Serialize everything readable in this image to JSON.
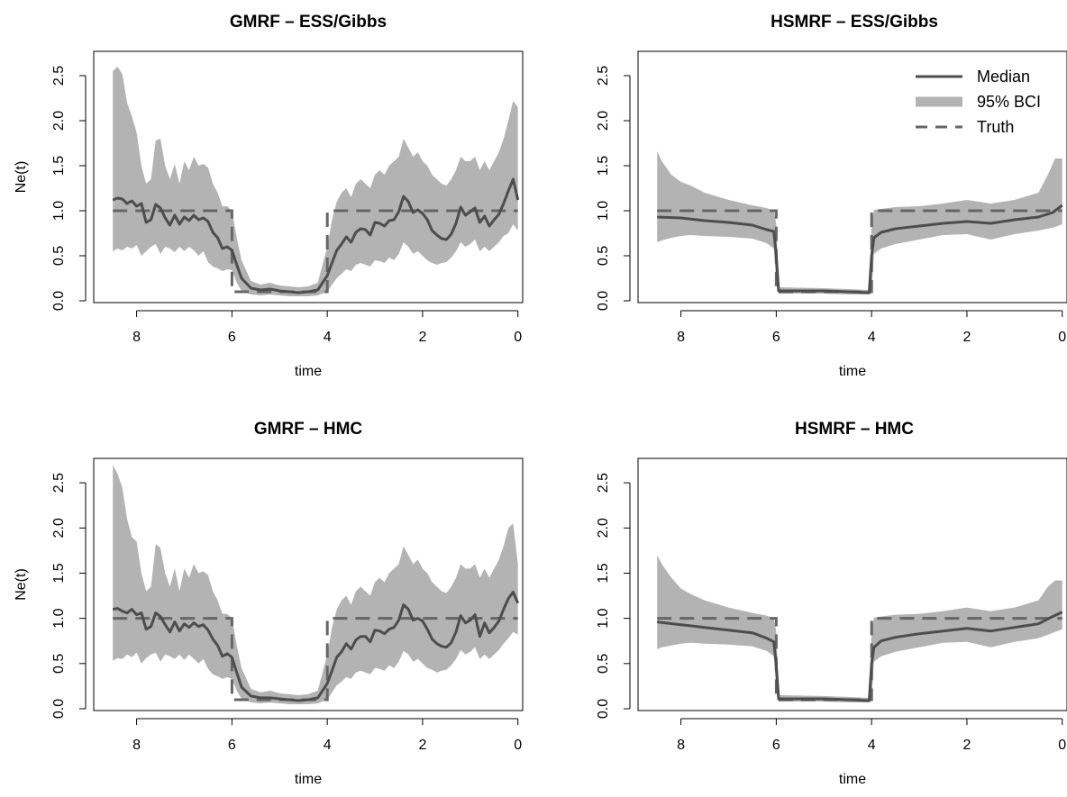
{
  "colors": {
    "median": "#4d4d4d",
    "band": "#b3b3b3",
    "truth": "#666666",
    "axis": "#000000"
  },
  "legend": {
    "panel": 1,
    "placement": "top-right",
    "items": [
      {
        "label": "Median",
        "style": "solid-line"
      },
      {
        "label": "95% BCI",
        "style": "thick-band-line"
      },
      {
        "label": "Truth",
        "style": "dashed-line"
      }
    ]
  },
  "chart_data": [
    {
      "type": "line",
      "title": "GMRF – ESS/Gibbs",
      "xlabel": "time",
      "ylabel": "Ne(t)",
      "xlim": [
        8.9,
        -0.1
      ],
      "ylim": [
        -0.02,
        2.77
      ],
      "xticks": [
        "8",
        "6",
        "4",
        "2",
        "0"
      ],
      "yticks": [
        "0.0",
        "0.5",
        "1.0",
        "1.5",
        "2.0",
        "2.5"
      ],
      "grid": false,
      "truth": {
        "x": [
          8.5,
          6.0,
          6.0,
          4.0,
          4.0,
          0.0
        ],
        "y": [
          1.0,
          1.0,
          0.1,
          0.1,
          1.0,
          1.0
        ]
      },
      "median": {
        "x": [
          8.5,
          8.4,
          8.3,
          8.2,
          8.1,
          8.0,
          7.9,
          7.8,
          7.7,
          7.6,
          7.5,
          7.4,
          7.3,
          7.2,
          7.1,
          7.0,
          6.9,
          6.8,
          6.7,
          6.6,
          6.5,
          6.4,
          6.3,
          6.2,
          6.1,
          6.0,
          5.9,
          5.8,
          5.6,
          5.4,
          5.2,
          5.0,
          4.8,
          4.6,
          4.4,
          4.2,
          4.0,
          3.9,
          3.8,
          3.7,
          3.6,
          3.5,
          3.4,
          3.3,
          3.2,
          3.1,
          3.0,
          2.9,
          2.8,
          2.7,
          2.6,
          2.5,
          2.4,
          2.3,
          2.2,
          2.1,
          2.0,
          1.9,
          1.8,
          1.7,
          1.6,
          1.5,
          1.4,
          1.3,
          1.2,
          1.1,
          1.0,
          0.9,
          0.8,
          0.7,
          0.6,
          0.5,
          0.4,
          0.3,
          0.2,
          0.1,
          0.0
        ],
        "y": [
          1.12,
          1.14,
          1.13,
          1.08,
          1.11,
          1.05,
          1.08,
          0.87,
          0.9,
          1.07,
          1.03,
          0.92,
          0.84,
          0.95,
          0.85,
          0.93,
          0.89,
          0.95,
          0.9,
          0.92,
          0.88,
          0.76,
          0.7,
          0.58,
          0.6,
          0.56,
          0.4,
          0.25,
          0.14,
          0.12,
          0.13,
          0.11,
          0.1,
          0.09,
          0.1,
          0.12,
          0.28,
          0.42,
          0.56,
          0.63,
          0.71,
          0.65,
          0.76,
          0.8,
          0.79,
          0.73,
          0.87,
          0.86,
          0.83,
          0.89,
          0.9,
          0.99,
          1.16,
          1.1,
          0.98,
          1.01,
          0.97,
          0.9,
          0.78,
          0.73,
          0.69,
          0.68,
          0.74,
          0.86,
          1.04,
          0.95,
          0.99,
          1.03,
          0.87,
          0.94,
          0.83,
          0.9,
          0.96,
          1.08,
          1.22,
          1.35,
          1.12
        ]
      },
      "band": {
        "x": [
          8.5,
          8.4,
          8.3,
          8.2,
          8.1,
          8.0,
          7.9,
          7.8,
          7.7,
          7.6,
          7.5,
          7.4,
          7.3,
          7.2,
          7.1,
          7.0,
          6.9,
          6.8,
          6.7,
          6.6,
          6.5,
          6.4,
          6.3,
          6.2,
          6.1,
          6.0,
          5.9,
          5.8,
          5.6,
          5.4,
          5.2,
          5.0,
          4.8,
          4.6,
          4.4,
          4.2,
          4.0,
          3.9,
          3.8,
          3.7,
          3.6,
          3.5,
          3.4,
          3.3,
          3.2,
          3.1,
          3.0,
          2.9,
          2.8,
          2.7,
          2.6,
          2.5,
          2.4,
          2.3,
          2.2,
          2.1,
          2.0,
          1.9,
          1.8,
          1.7,
          1.6,
          1.5,
          1.4,
          1.3,
          1.2,
          1.1,
          1.0,
          0.9,
          0.8,
          0.7,
          0.6,
          0.5,
          0.4,
          0.3,
          0.2,
          0.1,
          0.0
        ],
        "lower": [
          0.55,
          0.58,
          0.56,
          0.6,
          0.58,
          0.62,
          0.5,
          0.55,
          0.6,
          0.63,
          0.52,
          0.6,
          0.58,
          0.54,
          0.6,
          0.55,
          0.6,
          0.56,
          0.5,
          0.55,
          0.43,
          0.38,
          0.36,
          0.33,
          0.35,
          0.34,
          0.2,
          0.11,
          0.07,
          0.06,
          0.07,
          0.06,
          0.05,
          0.05,
          0.05,
          0.06,
          0.1,
          0.18,
          0.25,
          0.3,
          0.35,
          0.33,
          0.4,
          0.42,
          0.4,
          0.38,
          0.45,
          0.44,
          0.42,
          0.48,
          0.45,
          0.52,
          0.65,
          0.6,
          0.52,
          0.55,
          0.5,
          0.45,
          0.42,
          0.4,
          0.42,
          0.43,
          0.48,
          0.55,
          0.65,
          0.6,
          0.63,
          0.68,
          0.55,
          0.6,
          0.55,
          0.6,
          0.65,
          0.72,
          0.75,
          0.85,
          0.78
        ],
        "upper": [
          2.55,
          2.6,
          2.52,
          2.2,
          2.05,
          1.87,
          1.5,
          1.3,
          1.35,
          1.78,
          1.8,
          1.5,
          1.35,
          1.52,
          1.3,
          1.55,
          1.45,
          1.6,
          1.5,
          1.52,
          1.48,
          1.3,
          1.2,
          1.05,
          1.05,
          1.0,
          0.7,
          0.45,
          0.22,
          0.18,
          0.2,
          0.17,
          0.16,
          0.15,
          0.16,
          0.2,
          0.6,
          0.9,
          1.1,
          1.2,
          1.25,
          1.15,
          1.3,
          1.35,
          1.3,
          1.25,
          1.4,
          1.45,
          1.4,
          1.5,
          1.55,
          1.6,
          1.8,
          1.7,
          1.6,
          1.65,
          1.55,
          1.5,
          1.4,
          1.35,
          1.3,
          1.28,
          1.35,
          1.45,
          1.6,
          1.55,
          1.55,
          1.6,
          1.45,
          1.55,
          1.45,
          1.55,
          1.65,
          1.8,
          2.0,
          2.22,
          2.15
        ]
      }
    },
    {
      "type": "line",
      "title": "HSMRF – ESS/Gibbs",
      "xlabel": "time",
      "ylabel": "",
      "xlim": [
        8.9,
        -0.1
      ],
      "ylim": [
        -0.02,
        2.77
      ],
      "xticks": [
        "8",
        "6",
        "4",
        "2",
        "0"
      ],
      "yticks": [
        "0.0",
        "0.5",
        "1.0",
        "1.5",
        "2.0",
        "2.5"
      ],
      "grid": false,
      "truth": {
        "x": [
          8.5,
          6.0,
          6.0,
          4.0,
          4.0,
          0.0
        ],
        "y": [
          1.0,
          1.0,
          0.1,
          0.1,
          1.0,
          1.0
        ]
      },
      "median": {
        "x": [
          8.5,
          8.0,
          7.5,
          7.0,
          6.5,
          6.2,
          6.05,
          6.0,
          5.95,
          5.0,
          4.5,
          4.05,
          4.0,
          3.95,
          3.8,
          3.5,
          3.0,
          2.5,
          2.0,
          1.5,
          1.0,
          0.5,
          0.2,
          0.0
        ],
        "y": [
          0.93,
          0.92,
          0.89,
          0.87,
          0.84,
          0.79,
          0.77,
          0.5,
          0.11,
          0.11,
          0.1,
          0.09,
          0.5,
          0.7,
          0.76,
          0.8,
          0.83,
          0.86,
          0.88,
          0.86,
          0.9,
          0.93,
          0.98,
          1.06
        ]
      },
      "band": {
        "x": [
          8.5,
          8.4,
          8.2,
          8.0,
          7.8,
          7.5,
          7.0,
          6.5,
          6.2,
          6.05,
          6.0,
          5.95,
          5.0,
          4.5,
          4.05,
          4.0,
          3.95,
          3.8,
          3.5,
          3.0,
          2.5,
          2.0,
          1.5,
          1.0,
          0.5,
          0.3,
          0.15,
          0.0
        ],
        "lower": [
          0.65,
          0.67,
          0.7,
          0.72,
          0.73,
          0.72,
          0.71,
          0.69,
          0.64,
          0.58,
          0.2,
          0.08,
          0.08,
          0.07,
          0.07,
          0.1,
          0.52,
          0.58,
          0.63,
          0.68,
          0.73,
          0.74,
          0.68,
          0.74,
          0.78,
          0.8,
          0.82,
          0.85
        ],
        "upper": [
          1.66,
          1.55,
          1.4,
          1.32,
          1.28,
          1.2,
          1.12,
          1.06,
          1.03,
          1.0,
          0.85,
          0.15,
          0.14,
          0.13,
          0.12,
          0.85,
          1.01,
          1.02,
          1.04,
          1.05,
          1.08,
          1.12,
          1.08,
          1.12,
          1.2,
          1.4,
          1.58,
          1.58
        ]
      }
    },
    {
      "type": "line",
      "title": "GMRF – HMC",
      "xlabel": "time",
      "ylabel": "Ne(t)",
      "xlim": [
        8.9,
        -0.1
      ],
      "ylim": [
        -0.02,
        2.77
      ],
      "xticks": [
        "8",
        "6",
        "4",
        "2",
        "0"
      ],
      "yticks": [
        "0.0",
        "0.5",
        "1.0",
        "1.5",
        "2.0",
        "2.5"
      ],
      "grid": false,
      "truth": {
        "x": [
          8.5,
          6.0,
          6.0,
          4.0,
          4.0,
          0.0
        ],
        "y": [
          1.0,
          1.0,
          0.1,
          0.1,
          1.0,
          1.0
        ]
      },
      "median": {
        "x": [
          8.5,
          8.4,
          8.3,
          8.2,
          8.1,
          8.0,
          7.9,
          7.8,
          7.7,
          7.6,
          7.5,
          7.4,
          7.3,
          7.2,
          7.1,
          7.0,
          6.9,
          6.8,
          6.7,
          6.6,
          6.5,
          6.4,
          6.3,
          6.2,
          6.1,
          6.0,
          5.9,
          5.8,
          5.6,
          5.4,
          5.2,
          5.0,
          4.8,
          4.6,
          4.4,
          4.2,
          4.0,
          3.9,
          3.8,
          3.7,
          3.6,
          3.5,
          3.4,
          3.3,
          3.2,
          3.1,
          3.0,
          2.9,
          2.8,
          2.7,
          2.6,
          2.5,
          2.4,
          2.3,
          2.2,
          2.1,
          2.0,
          1.9,
          1.8,
          1.7,
          1.6,
          1.5,
          1.4,
          1.3,
          1.2,
          1.1,
          1.0,
          0.9,
          0.8,
          0.7,
          0.6,
          0.5,
          0.4,
          0.3,
          0.2,
          0.1,
          0.0
        ],
        "y": [
          1.1,
          1.11,
          1.08,
          1.06,
          1.1,
          1.04,
          1.06,
          0.88,
          0.91,
          1.06,
          1.02,
          0.93,
          0.85,
          0.96,
          0.86,
          0.94,
          0.9,
          0.95,
          0.91,
          0.93,
          0.87,
          0.77,
          0.7,
          0.58,
          0.61,
          0.57,
          0.4,
          0.24,
          0.14,
          0.12,
          0.12,
          0.11,
          0.1,
          0.09,
          0.1,
          0.12,
          0.28,
          0.42,
          0.57,
          0.63,
          0.72,
          0.66,
          0.76,
          0.8,
          0.8,
          0.74,
          0.87,
          0.86,
          0.83,
          0.88,
          0.9,
          0.98,
          1.15,
          1.1,
          0.98,
          1.0,
          0.97,
          0.88,
          0.77,
          0.72,
          0.69,
          0.68,
          0.73,
          0.85,
          1.03,
          0.95,
          0.98,
          1.04,
          0.8,
          0.95,
          0.84,
          0.9,
          0.97,
          1.1,
          1.22,
          1.29,
          1.17
        ]
      },
      "band": {
        "x": [
          8.5,
          8.4,
          8.3,
          8.2,
          8.1,
          8.0,
          7.9,
          7.8,
          7.7,
          7.6,
          7.5,
          7.4,
          7.3,
          7.2,
          7.1,
          7.0,
          6.9,
          6.8,
          6.7,
          6.6,
          6.5,
          6.4,
          6.3,
          6.2,
          6.1,
          6.0,
          5.9,
          5.8,
          5.6,
          5.4,
          5.2,
          5.0,
          4.8,
          4.6,
          4.4,
          4.2,
          4.0,
          3.9,
          3.8,
          3.7,
          3.6,
          3.5,
          3.4,
          3.3,
          3.2,
          3.1,
          3.0,
          2.9,
          2.8,
          2.7,
          2.6,
          2.5,
          2.4,
          2.3,
          2.2,
          2.1,
          2.0,
          1.9,
          1.8,
          1.7,
          1.6,
          1.5,
          1.4,
          1.3,
          1.2,
          1.1,
          1.0,
          0.9,
          0.8,
          0.7,
          0.6,
          0.5,
          0.4,
          0.3,
          0.2,
          0.1,
          0.0
        ],
        "lower": [
          0.53,
          0.56,
          0.55,
          0.6,
          0.57,
          0.62,
          0.5,
          0.56,
          0.6,
          0.62,
          0.52,
          0.6,
          0.58,
          0.55,
          0.6,
          0.54,
          0.6,
          0.55,
          0.5,
          0.55,
          0.44,
          0.38,
          0.36,
          0.33,
          0.35,
          0.33,
          0.2,
          0.11,
          0.07,
          0.06,
          0.07,
          0.06,
          0.05,
          0.05,
          0.05,
          0.06,
          0.1,
          0.18,
          0.26,
          0.3,
          0.35,
          0.33,
          0.4,
          0.42,
          0.4,
          0.38,
          0.45,
          0.44,
          0.42,
          0.48,
          0.45,
          0.52,
          0.64,
          0.6,
          0.52,
          0.55,
          0.5,
          0.45,
          0.43,
          0.4,
          0.42,
          0.43,
          0.48,
          0.55,
          0.65,
          0.6,
          0.63,
          0.68,
          0.55,
          0.6,
          0.55,
          0.6,
          0.65,
          0.72,
          0.78,
          0.85,
          0.82
        ],
        "upper": [
          2.7,
          2.6,
          2.45,
          2.1,
          1.9,
          1.85,
          1.5,
          1.3,
          1.35,
          1.82,
          1.78,
          1.5,
          1.35,
          1.55,
          1.3,
          1.55,
          1.45,
          1.6,
          1.5,
          1.52,
          1.48,
          1.3,
          1.2,
          1.05,
          1.05,
          1.0,
          0.7,
          0.45,
          0.22,
          0.18,
          0.2,
          0.17,
          0.16,
          0.15,
          0.16,
          0.2,
          0.6,
          0.9,
          1.1,
          1.2,
          1.25,
          1.15,
          1.3,
          1.35,
          1.3,
          1.25,
          1.4,
          1.45,
          1.4,
          1.5,
          1.55,
          1.6,
          1.8,
          1.7,
          1.6,
          1.65,
          1.55,
          1.5,
          1.4,
          1.35,
          1.3,
          1.28,
          1.35,
          1.45,
          1.6,
          1.55,
          1.55,
          1.6,
          1.45,
          1.55,
          1.45,
          1.55,
          1.65,
          1.8,
          2.0,
          2.05,
          1.6
        ]
      }
    },
    {
      "type": "line",
      "title": "HSMRF – HMC",
      "xlabel": "time",
      "ylabel": "",
      "xlim": [
        8.9,
        -0.1
      ],
      "ylim": [
        -0.02,
        2.77
      ],
      "xticks": [
        "8",
        "6",
        "4",
        "2",
        "0"
      ],
      "yticks": [
        "0.0",
        "0.5",
        "1.0",
        "1.5",
        "2.0",
        "2.5"
      ],
      "grid": false,
      "truth": {
        "x": [
          8.5,
          6.0,
          6.0,
          4.0,
          4.0,
          0.0
        ],
        "y": [
          1.0,
          1.0,
          0.1,
          0.1,
          1.0,
          1.0
        ]
      },
      "median": {
        "x": [
          8.5,
          8.0,
          7.5,
          7.0,
          6.5,
          6.2,
          6.05,
          6.0,
          5.95,
          5.0,
          4.5,
          4.05,
          4.0,
          3.95,
          3.8,
          3.5,
          3.0,
          2.5,
          2.0,
          1.5,
          1.0,
          0.5,
          0.2,
          0.0
        ],
        "y": [
          0.96,
          0.93,
          0.9,
          0.87,
          0.84,
          0.78,
          0.74,
          0.48,
          0.11,
          0.11,
          0.1,
          0.09,
          0.5,
          0.68,
          0.75,
          0.79,
          0.83,
          0.86,
          0.89,
          0.86,
          0.9,
          0.94,
          1.02,
          1.07
        ]
      },
      "band": {
        "x": [
          8.5,
          8.4,
          8.2,
          8.0,
          7.8,
          7.5,
          7.0,
          6.5,
          6.2,
          6.05,
          6.0,
          5.95,
          5.0,
          4.5,
          4.05,
          4.0,
          3.95,
          3.8,
          3.5,
          3.0,
          2.5,
          2.0,
          1.5,
          1.0,
          0.5,
          0.3,
          0.15,
          0.0
        ],
        "lower": [
          0.66,
          0.68,
          0.7,
          0.72,
          0.73,
          0.72,
          0.71,
          0.69,
          0.64,
          0.58,
          0.2,
          0.08,
          0.08,
          0.07,
          0.07,
          0.1,
          0.52,
          0.58,
          0.63,
          0.68,
          0.73,
          0.74,
          0.68,
          0.74,
          0.78,
          0.82,
          0.85,
          0.88
        ],
        "upper": [
          1.7,
          1.6,
          1.45,
          1.33,
          1.27,
          1.2,
          1.12,
          1.06,
          1.03,
          1.0,
          0.85,
          0.15,
          0.14,
          0.13,
          0.12,
          0.85,
          1.01,
          1.02,
          1.04,
          1.05,
          1.08,
          1.12,
          1.08,
          1.12,
          1.2,
          1.35,
          1.42,
          1.42
        ]
      }
    }
  ]
}
